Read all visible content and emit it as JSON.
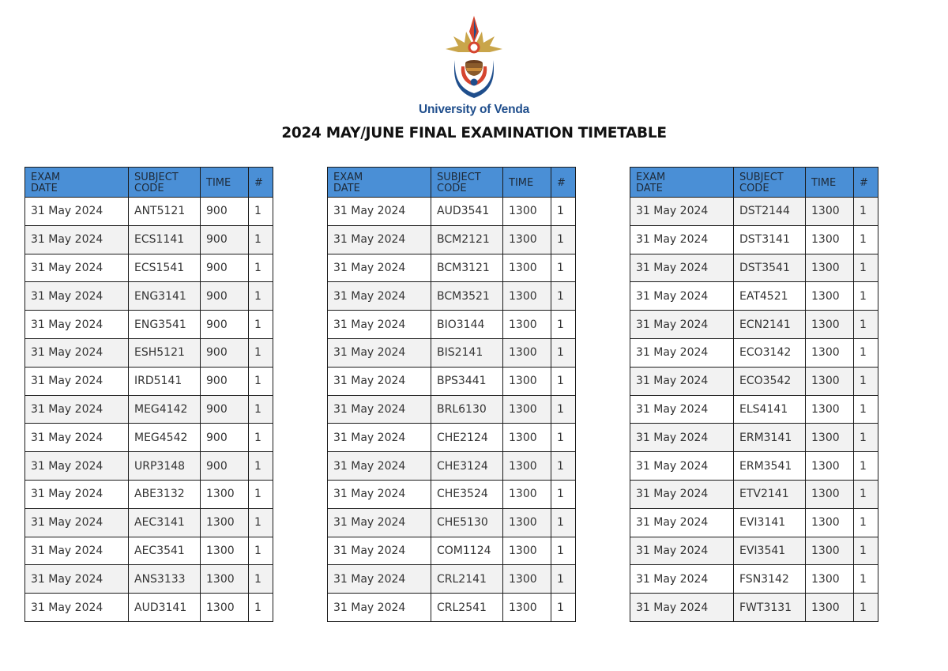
{
  "header": {
    "university_name": "University of Venda",
    "title": "2024 MAY/JUNE FINAL EXAMINATION TIMETABLE"
  },
  "columns": {
    "exam_date": "EXAM DATE",
    "subject_code": "SUBJECT CODE",
    "time": "TIME",
    "count": "#"
  },
  "colors": {
    "header_bg": "#4a8fd6",
    "alt_row_bg": "#f2f2f2",
    "logo_text": "#1f4e8c"
  },
  "tables": [
    {
      "rows": [
        {
          "date": "31 May 2024",
          "code": "ANT5121",
          "time": "900",
          "n": "1"
        },
        {
          "date": "31 May 2024",
          "code": "ECS1141",
          "time": "900",
          "n": "1"
        },
        {
          "date": "31 May 2024",
          "code": "ECS1541",
          "time": "900",
          "n": "1"
        },
        {
          "date": "31 May 2024",
          "code": "ENG3141",
          "time": "900",
          "n": "1"
        },
        {
          "date": "31 May 2024",
          "code": "ENG3541",
          "time": "900",
          "n": "1"
        },
        {
          "date": "31 May 2024",
          "code": "ESH5121",
          "time": "900",
          "n": "1"
        },
        {
          "date": "31 May 2024",
          "code": "IRD5141",
          "time": "900",
          "n": "1"
        },
        {
          "date": "31 May 2024",
          "code": "MEG4142",
          "time": "900",
          "n": "1"
        },
        {
          "date": "31 May 2024",
          "code": "MEG4542",
          "time": "900",
          "n": "1"
        },
        {
          "date": "31 May 2024",
          "code": "URP3148",
          "time": "900",
          "n": "1"
        },
        {
          "date": "31 May 2024",
          "code": "ABE3132",
          "time": "1300",
          "n": "1"
        },
        {
          "date": "31 May 2024",
          "code": "AEC3141",
          "time": "1300",
          "n": "1"
        },
        {
          "date": "31 May 2024",
          "code": "AEC3541",
          "time": "1300",
          "n": "1"
        },
        {
          "date": "31 May 2024",
          "code": "ANS3133",
          "time": "1300",
          "n": "1"
        },
        {
          "date": "31 May 2024",
          "code": "AUD3141",
          "time": "1300",
          "n": "1"
        }
      ]
    },
    {
      "rows": [
        {
          "date": "31 May 2024",
          "code": "AUD3541",
          "time": "1300",
          "n": "1"
        },
        {
          "date": "31 May 2024",
          "code": "BCM2121",
          "time": "1300",
          "n": "1"
        },
        {
          "date": "31 May 2024",
          "code": "BCM3121",
          "time": "1300",
          "n": "1"
        },
        {
          "date": "31 May 2024",
          "code": "BCM3521",
          "time": "1300",
          "n": "1"
        },
        {
          "date": "31 May 2024",
          "code": "BIO3144",
          "time": "1300",
          "n": "1"
        },
        {
          "date": "31 May 2024",
          "code": "BIS2141",
          "time": "1300",
          "n": "1"
        },
        {
          "date": "31 May 2024",
          "code": "BPS3441",
          "time": "1300",
          "n": "1"
        },
        {
          "date": "31 May 2024",
          "code": "BRL6130",
          "time": "1300",
          "n": "1"
        },
        {
          "date": "31 May 2024",
          "code": "CHE2124",
          "time": "1300",
          "n": "1"
        },
        {
          "date": "31 May 2024",
          "code": "CHE3124",
          "time": "1300",
          "n": "1"
        },
        {
          "date": "31 May 2024",
          "code": "CHE3524",
          "time": "1300",
          "n": "1"
        },
        {
          "date": "31 May 2024",
          "code": "CHE5130",
          "time": "1300",
          "n": "1"
        },
        {
          "date": "31 May 2024",
          "code": "COM1124",
          "time": "1300",
          "n": "1"
        },
        {
          "date": "31 May 2024",
          "code": "CRL2141",
          "time": "1300",
          "n": "1"
        },
        {
          "date": "31 May 2024",
          "code": "CRL2541",
          "time": "1300",
          "n": "1"
        }
      ]
    },
    {
      "rows": [
        {
          "date": "31 May 2024",
          "code": "DST2144",
          "time": "1300",
          "n": "1"
        },
        {
          "date": "31 May 2024",
          "code": "DST3141",
          "time": "1300",
          "n": "1"
        },
        {
          "date": "31 May 2024",
          "code": "DST3541",
          "time": "1300",
          "n": "1"
        },
        {
          "date": "31 May 2024",
          "code": "EAT4521",
          "time": "1300",
          "n": "1"
        },
        {
          "date": "31 May 2024",
          "code": "ECN2141",
          "time": "1300",
          "n": "1"
        },
        {
          "date": "31 May 2024",
          "code": "ECO3142",
          "time": "1300",
          "n": "1"
        },
        {
          "date": "31 May 2024",
          "code": "ECO3542",
          "time": "1300",
          "n": "1"
        },
        {
          "date": "31 May 2024",
          "code": "ELS4141",
          "time": "1300",
          "n": "1"
        },
        {
          "date": "31 May 2024",
          "code": "ERM3141",
          "time": "1300",
          "n": "1"
        },
        {
          "date": "31 May 2024",
          "code": "ERM3541",
          "time": "1300",
          "n": "1"
        },
        {
          "date": "31 May 2024",
          "code": "ETV2141",
          "time": "1300",
          "n": "1"
        },
        {
          "date": "31 May 2024",
          "code": "EVI3141",
          "time": "1300",
          "n": "1"
        },
        {
          "date": "31 May 2024",
          "code": "EVI3541",
          "time": "1300",
          "n": "1"
        },
        {
          "date": "31 May 2024",
          "code": "FSN3142",
          "time": "1300",
          "n": "1"
        },
        {
          "date": "31 May 2024",
          "code": "FWT3131",
          "time": "1300",
          "n": "1"
        }
      ]
    }
  ]
}
